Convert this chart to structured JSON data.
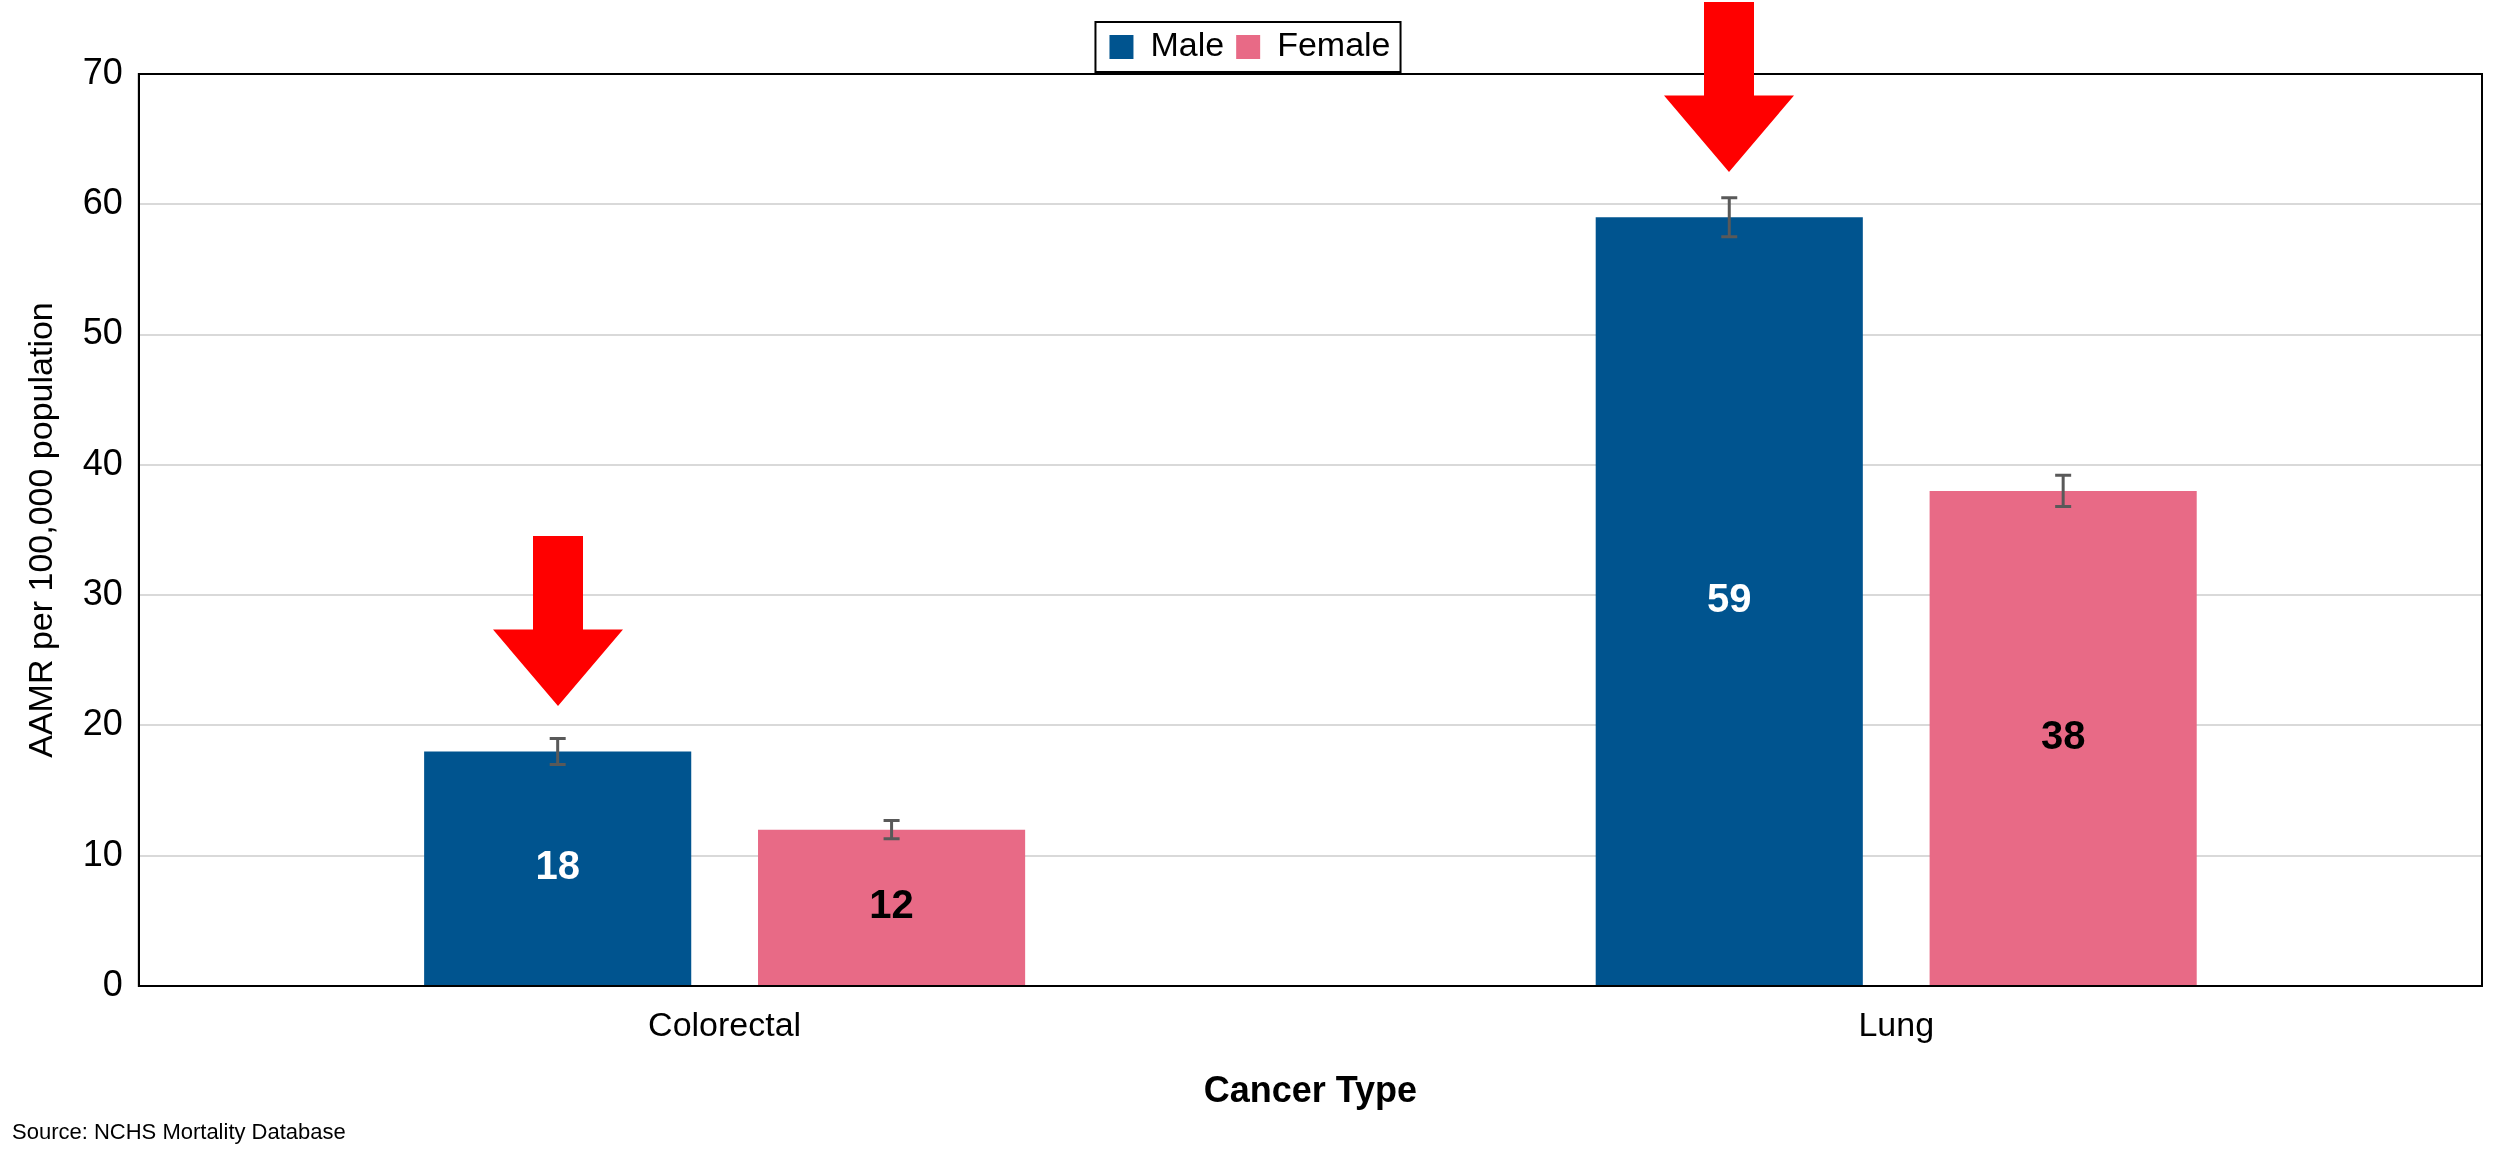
{
  "chart_data": {
    "type": "bar",
    "xlabel": "Cancer Type",
    "ylabel": "AAMR per 100,000 population",
    "categories": [
      "Colorectal",
      "Lung"
    ],
    "series": [
      {
        "name": "Male",
        "color": "#00548f",
        "values": [
          18,
          59
        ],
        "errors": [
          1,
          1.5
        ]
      },
      {
        "name": "Female",
        "color": "#e86a86",
        "values": [
          12,
          38
        ],
        "errors": [
          0.7,
          1.2
        ]
      }
    ],
    "ylim": [
      0,
      70
    ],
    "yticks": [
      0,
      10,
      20,
      30,
      40,
      50,
      60,
      70
    ],
    "grid": "y",
    "legend": "top",
    "data_labels": true,
    "annotations": [
      "Source: NCHS Mortality Database"
    ]
  }
}
